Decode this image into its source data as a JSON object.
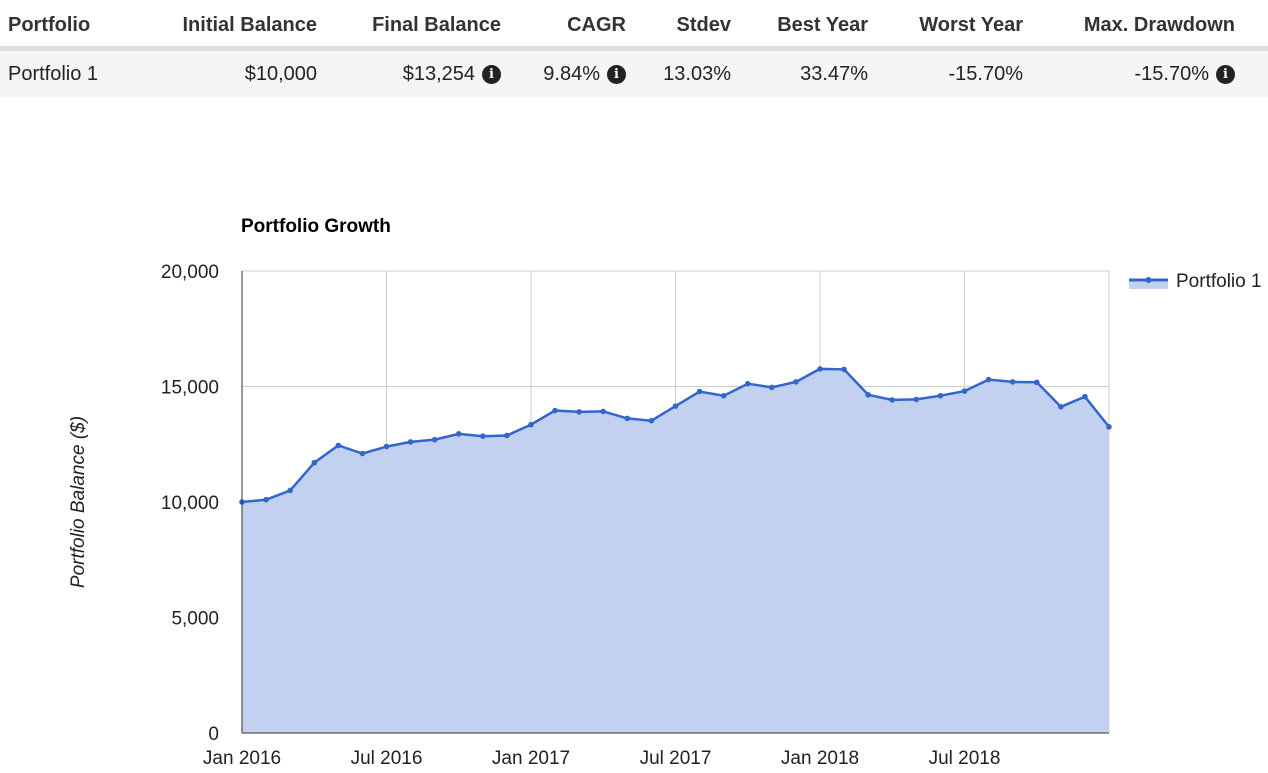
{
  "table": {
    "headers": {
      "portfolio": "Portfolio",
      "initial_balance": "Initial Balance",
      "final_balance": "Final Balance",
      "cagr": "CAGR",
      "stdev": "Stdev",
      "best_year": "Best Year",
      "worst_year": "Worst Year",
      "max_drawdown": "Max. Drawdown"
    },
    "rows": [
      {
        "portfolio": "Portfolio 1",
        "initial_balance": "$10,000",
        "final_balance": "$13,254",
        "cagr": "9.84%",
        "stdev": "13.03%",
        "best_year": "33.47%",
        "worst_year": "-15.70%",
        "max_drawdown": "-15.70%"
      }
    ],
    "info_icon": "info-circle-icon",
    "info_glyph": "i"
  },
  "chart_data": {
    "type": "area",
    "title": "Portfolio Growth",
    "ylabel": "Portfolio Balance ($)",
    "xlabel": "",
    "ylim": [
      0,
      20000
    ],
    "y_ticks": [
      "0",
      "5,000",
      "10,000",
      "15,000",
      "20,000"
    ],
    "y_tick_values": [
      0,
      5000,
      10000,
      15000,
      20000
    ],
    "x_ticks": [
      "Jan 2016",
      "Jul 2016",
      "Jan 2017",
      "Jul 2017",
      "Jan 2018",
      "Jul 2018"
    ],
    "x_tick_months": [
      0,
      6,
      12,
      18,
      24,
      30
    ],
    "grid": true,
    "legend_position": "top-right",
    "line_color": "#3366cc",
    "fill_color": "#c3d1f0",
    "series": [
      {
        "name": "Portfolio 1",
        "x": [
          "Jan 2016",
          "Feb 2016",
          "Mar 2016",
          "Apr 2016",
          "May 2016",
          "Jun 2016",
          "Jul 2016",
          "Aug 2016",
          "Sep 2016",
          "Oct 2016",
          "Nov 2016",
          "Dec 2016",
          "Jan 2017",
          "Feb 2017",
          "Mar 2017",
          "Apr 2017",
          "May 2017",
          "Jun 2017",
          "Jul 2017",
          "Aug 2017",
          "Sep 2017",
          "Oct 2017",
          "Nov 2017",
          "Dec 2017",
          "Jan 2018",
          "Feb 2018",
          "Mar 2018",
          "Apr 2018",
          "May 2018",
          "Jun 2018",
          "Jul 2018",
          "Aug 2018",
          "Sep 2018",
          "Oct 2018",
          "Nov 2018",
          "Dec 2018",
          "Jan 2019"
        ],
        "values": [
          10000,
          10100,
          10500,
          11700,
          12450,
          12100,
          12400,
          12600,
          12700,
          12950,
          12850,
          12880,
          13350,
          13960,
          13900,
          13920,
          13620,
          13520,
          14150,
          14780,
          14600,
          15120,
          14960,
          15200,
          15760,
          15740,
          14640,
          14420,
          14440,
          14600,
          14800,
          15300,
          15200,
          15180,
          14120,
          14560,
          13254
        ]
      }
    ]
  }
}
